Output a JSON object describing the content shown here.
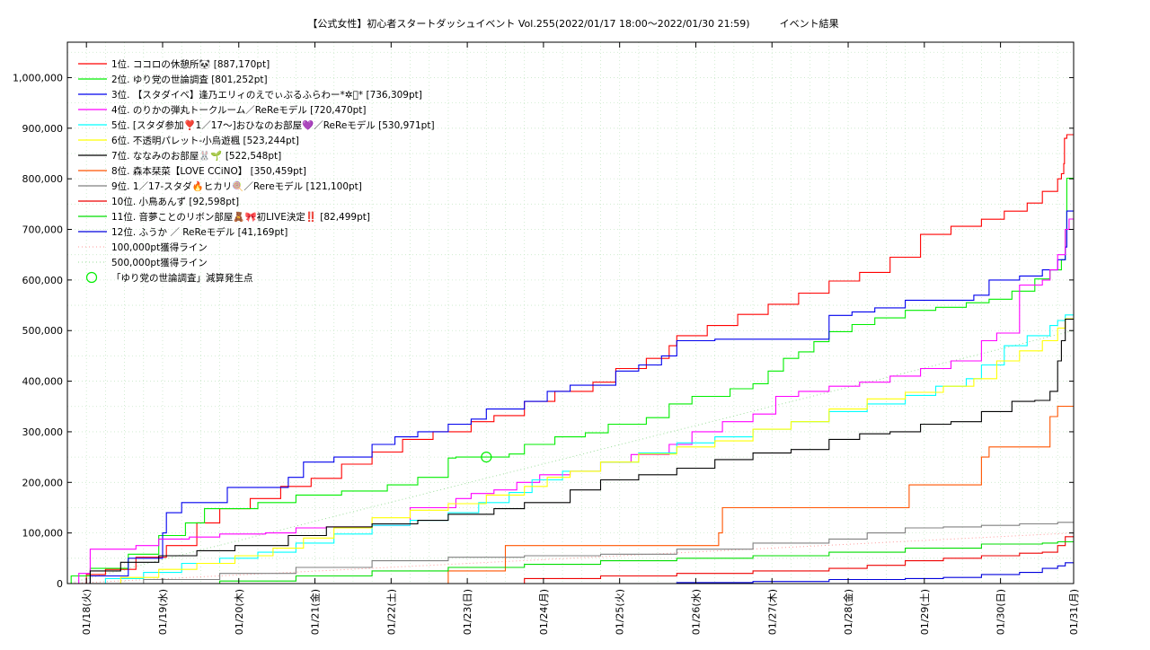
{
  "chart_data": {
    "type": "line",
    "title": "【公式女性】初心者スタートダッシュイベント Vol.255(2022/01/17 18:00～2022/01/30 21:59)　　　イベント結果",
    "xlabel": "",
    "ylabel": "",
    "xlim": [
      0,
      13.21
    ],
    "ylim": [
      0,
      1070000
    ],
    "grid": true,
    "legend_position": "top-left",
    "x_tick_labels": [
      "01/18(火)",
      "01/19(水)",
      "01/20(木)",
      "01/21(金)",
      "01/22(土)",
      "01/23(日)",
      "01/24(月)",
      "01/25(火)",
      "01/26(水)",
      "01/27(木)",
      "01/28(金)",
      "01/29(土)",
      "01/30(日)",
      "01/31(月)"
    ],
    "x_ticks": [
      0.25,
      1.25,
      2.25,
      3.25,
      4.25,
      5.25,
      6.25,
      7.25,
      8.25,
      9.25,
      10.25,
      11.25,
      12.25,
      13.25
    ],
    "y_ticks": [
      0,
      100000,
      200000,
      300000,
      400000,
      500000,
      600000,
      700000,
      800000,
      900000,
      1000000
    ],
    "y_tick_labels": [
      "0",
      "100,000",
      "200,000",
      "300,000",
      "400,000",
      "500,000",
      "600,000",
      "700,000",
      "800,000",
      "900,000",
      "1,000,000"
    ],
    "series": [
      {
        "name": "1位. ココロの休憩所🐼 [887,170pt]",
        "color": "#ff0000",
        "x": [
          0,
          0.25,
          0.5,
          0.9,
          1.3,
          1.7,
          2.0,
          2.4,
          2.8,
          3.2,
          3.6,
          4.0,
          4.4,
          4.8,
          5.3,
          5.6,
          6.0,
          6.4,
          6.9,
          7.2,
          7.6,
          7.9,
          8.0,
          8.4,
          8.8,
          9.2,
          9.6,
          10.0,
          10.4,
          10.8,
          11.2,
          11.6,
          12.0,
          12.3,
          12.6,
          12.8,
          13.0,
          13.05,
          13.08,
          13.09,
          13.12,
          13.21
        ],
        "y": [
          0,
          18000,
          28000,
          52000,
          75000,
          120000,
          148000,
          168000,
          192000,
          208000,
          236000,
          260000,
          285000,
          300000,
          320000,
          332000,
          360000,
          380000,
          398000,
          425000,
          445000,
          470000,
          490000,
          510000,
          532000,
          552000,
          574000,
          598000,
          615000,
          645000,
          690000,
          706000,
          720000,
          736000,
          752000,
          775000,
          800000,
          810000,
          830000,
          880000,
          887170,
          887170
        ]
      },
      {
        "name": "2位. ゆり党の世論調査 [801,252pt]",
        "color": "#00ee00",
        "x": [
          0,
          0.05,
          0.3,
          0.8,
          1.2,
          1.55,
          1.8,
          2.5,
          3.0,
          3.6,
          4.2,
          4.6,
          5.0,
          5.1,
          5.5,
          5.8,
          6.0,
          6.4,
          6.8,
          7.1,
          7.6,
          7.9,
          8.2,
          8.7,
          9.0,
          9.2,
          9.4,
          9.6,
          9.8,
          10.0,
          10.3,
          10.6,
          11.0,
          11.4,
          11.8,
          12.1,
          12.4,
          12.7,
          12.9,
          13.05,
          13.1,
          13.12,
          13.21
        ],
        "y": [
          0,
          15000,
          30000,
          58000,
          95000,
          120000,
          148000,
          160000,
          175000,
          183000,
          195000,
          210000,
          248000,
          250000,
          250000,
          256000,
          275000,
          290000,
          298000,
          315000,
          328000,
          355000,
          370000,
          385000,
          395000,
          420000,
          445000,
          458000,
          478000,
          498000,
          512000,
          525000,
          540000,
          546000,
          555000,
          562000,
          578000,
          602000,
          620000,
          640000,
          700000,
          801252,
          801252
        ]
      },
      {
        "name": "3位. 【スタダイベ】逢乃エリィのえでぃぶるふらわー*✲ﾟ* [736,309pt]",
        "color": "#0000ee",
        "x": [
          0,
          0.3,
          0.8,
          1.25,
          1.3,
          1.5,
          2.0,
          2.1,
          2.5,
          2.9,
          3.1,
          3.5,
          4.0,
          4.3,
          4.6,
          5.0,
          5.3,
          5.5,
          6.0,
          6.3,
          6.6,
          7.0,
          7.2,
          7.5,
          7.8,
          8.0,
          8.5,
          8.9,
          9.2,
          9.5,
          10.0,
          10.3,
          10.6,
          11.0,
          11.3,
          11.6,
          11.9,
          12.1,
          12.5,
          12.8,
          13.0,
          13.1,
          13.12,
          13.21
        ],
        "y": [
          0,
          15000,
          50000,
          100000,
          140000,
          160000,
          160000,
          190000,
          190000,
          210000,
          240000,
          250000,
          275000,
          290000,
          300000,
          315000,
          325000,
          345000,
          360000,
          380000,
          392000,
          392000,
          420000,
          432000,
          450000,
          480000,
          483000,
          483000,
          483000,
          483000,
          530000,
          537000,
          545000,
          560000,
          560000,
          560000,
          570000,
          600000,
          608000,
          620000,
          640000,
          665000,
          736309,
          736309
        ]
      },
      {
        "name": "4位. のりかの弾丸トークルーム／ReReモデル [720,470pt]",
        "color": "#ff00ff",
        "x": [
          0,
          0.15,
          0.3,
          0.9,
          1.2,
          1.6,
          2.0,
          2.6,
          3.0,
          3.4,
          4.0,
          4.5,
          5.1,
          5.3,
          5.6,
          5.9,
          6.2,
          6.6,
          7.0,
          7.4,
          7.9,
          8.2,
          8.6,
          9.0,
          9.3,
          9.6,
          10.0,
          10.4,
          10.8,
          11.2,
          11.6,
          12.0,
          12.2,
          12.4,
          12.5,
          12.8,
          12.9,
          13.0,
          13.1,
          13.15,
          13.21
        ],
        "y": [
          0,
          20000,
          68000,
          75000,
          88000,
          92000,
          98000,
          100000,
          110000,
          112000,
          115000,
          150000,
          168000,
          178000,
          185000,
          200000,
          215000,
          222000,
          240000,
          255000,
          275000,
          300000,
          320000,
          335000,
          370000,
          380000,
          390000,
          398000,
          410000,
          425000,
          440000,
          480000,
          495000,
          495000,
          590000,
          600000,
          620000,
          650000,
          700000,
          720470,
          720470
        ]
      },
      {
        "name": "5位. [スタダ参加❣️1／17〜]おひなのお部屋💜／ReReモデル [530,971pt]",
        "color": "#00ffff",
        "x": [
          0,
          0.5,
          1.0,
          1.5,
          2.0,
          2.5,
          3.0,
          3.5,
          4.0,
          4.5,
          5.0,
          5.4,
          5.8,
          6.1,
          6.5,
          7.0,
          7.5,
          8.0,
          8.5,
          9.0,
          9.5,
          10.0,
          10.5,
          11.0,
          11.4,
          11.8,
          12.0,
          12.3,
          12.6,
          12.9,
          13.0,
          13.1,
          13.21
        ],
        "y": [
          0,
          10000,
          22000,
          40000,
          50000,
          62000,
          80000,
          98000,
          115000,
          125000,
          140000,
          160000,
          180000,
          205000,
          222000,
          240000,
          258000,
          278000,
          290000,
          305000,
          320000,
          340000,
          355000,
          372000,
          390000,
          405000,
          432000,
          470000,
          490000,
          510000,
          520000,
          530971,
          530971
        ]
      },
      {
        "name": "6位. 不透明パレット-小烏遊楓 [523,244pt]",
        "color": "#ffff00",
        "x": [
          0,
          0.7,
          1.2,
          1.7,
          2.2,
          2.7,
          3.1,
          3.5,
          4.0,
          4.5,
          5.0,
          5.5,
          6.0,
          6.3,
          6.6,
          7.0,
          7.5,
          8.0,
          8.5,
          9.0,
          9.5,
          10.0,
          10.5,
          11.0,
          11.5,
          11.9,
          12.2,
          12.5,
          12.8,
          13.0,
          13.1,
          13.21
        ],
        "y": [
          0,
          12000,
          28000,
          40000,
          55000,
          70000,
          90000,
          110000,
          130000,
          145000,
          158000,
          175000,
          192000,
          210000,
          222000,
          240000,
          256000,
          270000,
          282000,
          305000,
          320000,
          345000,
          365000,
          378000,
          390000,
          405000,
          440000,
          460000,
          480000,
          505000,
          523244,
          523244
        ]
      },
      {
        "name": "7位. ななみのお部屋🐰🌱 [522,548pt]",
        "color": "#000000",
        "x": [
          0,
          0.3,
          0.7,
          1.2,
          1.7,
          2.2,
          2.9,
          3.4,
          4.0,
          4.6,
          5.0,
          5.6,
          6.0,
          6.6,
          7.0,
          7.5,
          8.0,
          8.5,
          9.0,
          9.5,
          10.0,
          10.4,
          10.8,
          11.2,
          11.6,
          12.0,
          12.4,
          12.7,
          12.9,
          13.0,
          13.05,
          13.1,
          13.21
        ],
        "y": [
          0,
          25000,
          42000,
          55000,
          65000,
          75000,
          95000,
          112000,
          118000,
          125000,
          137000,
          148000,
          160000,
          185000,
          205000,
          215000,
          228000,
          245000,
          258000,
          265000,
          285000,
          296000,
          300000,
          315000,
          320000,
          340000,
          360000,
          362000,
          380000,
          440000,
          480000,
          522548,
          522548
        ]
      },
      {
        "name": "8位. 森本栞菜【LOVE CCiNO】 [350,459pt]",
        "color": "#ff5500",
        "x": [
          0,
          4.0,
          5.0,
          5.7,
          5.75,
          8.5,
          8.55,
          8.6,
          11.0,
          11.05,
          11.9,
          12.0,
          12.1,
          12.8,
          12.9,
          13.0,
          13.21
        ],
        "y": [
          0,
          0,
          25000,
          25000,
          75000,
          75000,
          100000,
          150000,
          150000,
          195000,
          195000,
          250000,
          270000,
          270000,
          330000,
          350459,
          350459
        ]
      },
      {
        "name": "9位. 1／17-スタダ🔥ヒカリ🍭／Rereモデル [121,100pt]",
        "color": "#808080",
        "x": [
          0,
          1.0,
          2.0,
          3.0,
          4.0,
          5.0,
          6.0,
          7.0,
          8.0,
          9.0,
          10.0,
          10.5,
          11.0,
          11.5,
          12.0,
          12.5,
          13.0,
          13.21
        ],
        "y": [
          0,
          8000,
          20000,
          32000,
          45000,
          52000,
          55000,
          58000,
          68000,
          80000,
          88000,
          100000,
          110000,
          112000,
          115000,
          118000,
          121100,
          121100
        ]
      },
      {
        "name": "10位. 小鳥あんず [92,598pt]",
        "color": "#ee0000",
        "x": [
          0,
          5.0,
          6.0,
          7.0,
          8.0,
          9.0,
          10.0,
          10.5,
          11.0,
          11.5,
          12.0,
          12.5,
          12.8,
          13.0,
          13.1,
          13.21
        ],
        "y": [
          0,
          0,
          10000,
          15000,
          20000,
          25000,
          30000,
          36000,
          45000,
          50000,
          55000,
          60000,
          62000,
          75000,
          92598,
          92598
        ]
      },
      {
        "name": "11位. 音夢ことのリボン部屋🧸🎀初LIVE決定‼️ [82,499pt]",
        "color": "#00dd00",
        "x": [
          0,
          1.5,
          2.0,
          3.0,
          4.0,
          5.0,
          6.0,
          7.0,
          8.0,
          9.0,
          10.0,
          11.0,
          12.0,
          12.8,
          13.0,
          13.21
        ],
        "y": [
          0,
          0,
          5000,
          15000,
          25000,
          32000,
          38000,
          45000,
          50000,
          55000,
          62000,
          70000,
          78000,
          80000,
          82499,
          82499
        ]
      },
      {
        "name": "12位. ふうか ／ ReReモデル [41,169pt]",
        "color": "#0000dd",
        "x": [
          0,
          7.0,
          8.0,
          9.0,
          10.0,
          11.0,
          11.5,
          12.0,
          12.5,
          12.8,
          13.0,
          13.1,
          13.21
        ],
        "y": [
          0,
          0,
          2000,
          4000,
          8000,
          10000,
          12000,
          18000,
          22000,
          30000,
          35000,
          41169,
          41169
        ]
      }
    ],
    "reference_lines": [
      {
        "name": "100,000pt獲得ライン",
        "color": "#ff9999",
        "x": [
          0,
          13.21
        ],
        "y": [
          0,
          100000
        ]
      },
      {
        "name": "500,000pt獲得ライン",
        "color": "#99dd99",
        "x": [
          0,
          13.21
        ],
        "y": [
          0,
          500000
        ]
      }
    ],
    "marker": {
      "name": "「ゆり党の世論調査」減算発生点",
      "color": "#00ee00",
      "x": 5.5,
      "y": 250000
    }
  }
}
